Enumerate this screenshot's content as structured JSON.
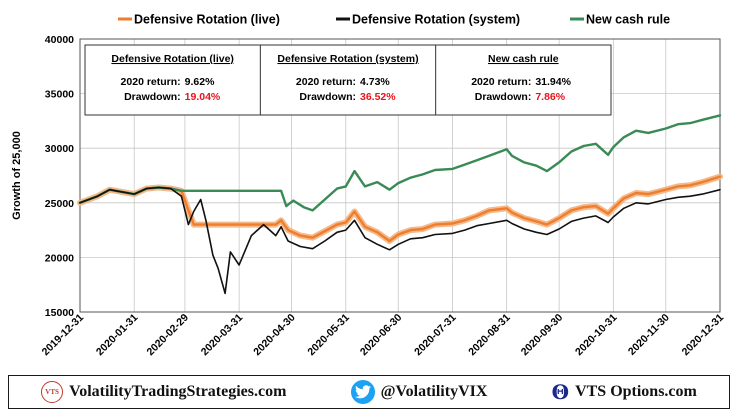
{
  "chart_data": {
    "type": "line",
    "xlabel": "",
    "ylabel": "Growth of 25,000",
    "ylim": [
      15000,
      40000
    ],
    "yticks": [
      15000,
      20000,
      25000,
      30000,
      35000,
      40000
    ],
    "ytick_labels": [
      "15000",
      "20000",
      "25000",
      "30000",
      "35000",
      "40000"
    ],
    "xticks": [
      "2019-12-31",
      "2020-01-31",
      "2020-02-29",
      "2020-03-31",
      "2020-04-30",
      "2020-05-31",
      "2020-06-30",
      "2020-07-31",
      "2020-08-31",
      "2020-09-30",
      "2020-10-31",
      "2020-11-30",
      "2020-12-31"
    ],
    "grid": true,
    "legend_position": "top",
    "series": [
      {
        "name": "Defensive Rotation  (live)",
        "color": "#ef7d2e",
        "points": [
          [
            "2019-12-31",
            25000
          ],
          [
            "2020-01-10",
            25600
          ],
          [
            "2020-01-17",
            26200
          ],
          [
            "2020-01-24",
            26000
          ],
          [
            "2020-01-31",
            25800
          ],
          [
            "2020-02-07",
            26300
          ],
          [
            "2020-02-14",
            26400
          ],
          [
            "2020-02-21",
            26300
          ],
          [
            "2020-02-27",
            26100
          ],
          [
            "2020-03-02",
            24300
          ],
          [
            "2020-03-05",
            23000
          ],
          [
            "2020-03-12",
            23000
          ],
          [
            "2020-03-19",
            23000
          ],
          [
            "2020-03-26",
            23000
          ],
          [
            "2020-03-31",
            23000
          ],
          [
            "2020-04-07",
            23000
          ],
          [
            "2020-04-14",
            23000
          ],
          [
            "2020-04-21",
            23000
          ],
          [
            "2020-04-24",
            23400
          ],
          [
            "2020-04-28",
            22500
          ],
          [
            "2020-05-05",
            22000
          ],
          [
            "2020-05-12",
            21800
          ],
          [
            "2020-05-19",
            22400
          ],
          [
            "2020-05-26",
            23000
          ],
          [
            "2020-05-31",
            23200
          ],
          [
            "2020-06-05",
            24200
          ],
          [
            "2020-06-11",
            22800
          ],
          [
            "2020-06-18",
            22300
          ],
          [
            "2020-06-25",
            21500
          ],
          [
            "2020-06-30",
            22100
          ],
          [
            "2020-07-07",
            22500
          ],
          [
            "2020-07-14",
            22600
          ],
          [
            "2020-07-21",
            23000
          ],
          [
            "2020-07-31",
            23100
          ],
          [
            "2020-08-07",
            23400
          ],
          [
            "2020-08-14",
            23800
          ],
          [
            "2020-08-21",
            24300
          ],
          [
            "2020-08-31",
            24500
          ],
          [
            "2020-09-03",
            24100
          ],
          [
            "2020-09-10",
            23600
          ],
          [
            "2020-09-17",
            23300
          ],
          [
            "2020-09-23",
            23000
          ],
          [
            "2020-09-30",
            23600
          ],
          [
            "2020-10-07",
            24300
          ],
          [
            "2020-10-14",
            24600
          ],
          [
            "2020-10-21",
            24700
          ],
          [
            "2020-10-28",
            24000
          ],
          [
            "2020-10-31",
            24500
          ],
          [
            "2020-11-06",
            25400
          ],
          [
            "2020-11-13",
            25900
          ],
          [
            "2020-11-20",
            25800
          ],
          [
            "2020-11-30",
            26200
          ],
          [
            "2020-12-07",
            26500
          ],
          [
            "2020-12-14",
            26600
          ],
          [
            "2020-12-21",
            26900
          ],
          [
            "2020-12-31",
            27400
          ]
        ]
      },
      {
        "name": "Defensive Rotation  (system)",
        "color": "#111111",
        "points": [
          [
            "2019-12-31",
            25000
          ],
          [
            "2020-01-10",
            25600
          ],
          [
            "2020-01-17",
            26200
          ],
          [
            "2020-01-24",
            26000
          ],
          [
            "2020-01-31",
            25800
          ],
          [
            "2020-02-07",
            26300
          ],
          [
            "2020-02-14",
            26400
          ],
          [
            "2020-02-21",
            26300
          ],
          [
            "2020-02-27",
            25600
          ],
          [
            "2020-03-02",
            23000
          ],
          [
            "2020-03-05",
            24200
          ],
          [
            "2020-03-09",
            25300
          ],
          [
            "2020-03-12",
            23400
          ],
          [
            "2020-03-16",
            20200
          ],
          [
            "2020-03-19",
            19000
          ],
          [
            "2020-03-23",
            16700
          ],
          [
            "2020-03-26",
            20500
          ],
          [
            "2020-03-31",
            19300
          ],
          [
            "2020-04-07",
            22000
          ],
          [
            "2020-04-14",
            23000
          ],
          [
            "2020-04-21",
            22000
          ],
          [
            "2020-04-24",
            22800
          ],
          [
            "2020-04-28",
            21500
          ],
          [
            "2020-05-05",
            21000
          ],
          [
            "2020-05-12",
            20800
          ],
          [
            "2020-05-19",
            21500
          ],
          [
            "2020-05-26",
            22300
          ],
          [
            "2020-05-31",
            22500
          ],
          [
            "2020-06-05",
            23400
          ],
          [
            "2020-06-11",
            21800
          ],
          [
            "2020-06-18",
            21200
          ],
          [
            "2020-06-25",
            20700
          ],
          [
            "2020-06-30",
            21200
          ],
          [
            "2020-07-07",
            21700
          ],
          [
            "2020-07-14",
            21800
          ],
          [
            "2020-07-21",
            22100
          ],
          [
            "2020-07-31",
            22200
          ],
          [
            "2020-08-07",
            22500
          ],
          [
            "2020-08-14",
            22900
          ],
          [
            "2020-08-21",
            23100
          ],
          [
            "2020-08-31",
            23400
          ],
          [
            "2020-09-03",
            23100
          ],
          [
            "2020-09-10",
            22600
          ],
          [
            "2020-09-17",
            22300
          ],
          [
            "2020-09-23",
            22100
          ],
          [
            "2020-09-30",
            22600
          ],
          [
            "2020-10-07",
            23300
          ],
          [
            "2020-10-14",
            23600
          ],
          [
            "2020-10-21",
            23800
          ],
          [
            "2020-10-28",
            23200
          ],
          [
            "2020-10-31",
            23700
          ],
          [
            "2020-11-06",
            24500
          ],
          [
            "2020-11-13",
            25000
          ],
          [
            "2020-11-20",
            24900
          ],
          [
            "2020-11-30",
            25300
          ],
          [
            "2020-12-07",
            25500
          ],
          [
            "2020-12-14",
            25600
          ],
          [
            "2020-12-21",
            25800
          ],
          [
            "2020-12-31",
            26200
          ]
        ]
      },
      {
        "name": "New cash rule",
        "color": "#3a8a56",
        "points": [
          [
            "2019-12-31",
            25000
          ],
          [
            "2020-01-10",
            25600
          ],
          [
            "2020-01-17",
            26200
          ],
          [
            "2020-01-24",
            26000
          ],
          [
            "2020-01-31",
            25800
          ],
          [
            "2020-02-07",
            26300
          ],
          [
            "2020-02-14",
            26400
          ],
          [
            "2020-02-21",
            26300
          ],
          [
            "2020-02-27",
            26100
          ],
          [
            "2020-03-05",
            26100
          ],
          [
            "2020-03-12",
            26100
          ],
          [
            "2020-03-19",
            26100
          ],
          [
            "2020-03-26",
            26100
          ],
          [
            "2020-03-31",
            26100
          ],
          [
            "2020-04-07",
            26100
          ],
          [
            "2020-04-14",
            26100
          ],
          [
            "2020-04-21",
            26100
          ],
          [
            "2020-04-24",
            26100
          ],
          [
            "2020-04-27",
            24700
          ],
          [
            "2020-05-01",
            25200
          ],
          [
            "2020-05-07",
            24600
          ],
          [
            "2020-05-12",
            24300
          ],
          [
            "2020-05-19",
            25300
          ],
          [
            "2020-05-26",
            26300
          ],
          [
            "2020-05-31",
            26500
          ],
          [
            "2020-06-05",
            27900
          ],
          [
            "2020-06-11",
            26500
          ],
          [
            "2020-06-18",
            26900
          ],
          [
            "2020-06-25",
            26200
          ],
          [
            "2020-06-30",
            26800
          ],
          [
            "2020-07-07",
            27300
          ],
          [
            "2020-07-14",
            27600
          ],
          [
            "2020-07-21",
            28000
          ],
          [
            "2020-07-31",
            28100
          ],
          [
            "2020-08-07",
            28500
          ],
          [
            "2020-08-14",
            28900
          ],
          [
            "2020-08-21",
            29300
          ],
          [
            "2020-08-31",
            29900
          ],
          [
            "2020-09-03",
            29300
          ],
          [
            "2020-09-10",
            28700
          ],
          [
            "2020-09-17",
            28400
          ],
          [
            "2020-09-23",
            27900
          ],
          [
            "2020-09-30",
            28700
          ],
          [
            "2020-10-07",
            29700
          ],
          [
            "2020-10-14",
            30200
          ],
          [
            "2020-10-21",
            30400
          ],
          [
            "2020-10-28",
            29400
          ],
          [
            "2020-10-31",
            30100
          ],
          [
            "2020-11-06",
            31000
          ],
          [
            "2020-11-13",
            31600
          ],
          [
            "2020-11-20",
            31400
          ],
          [
            "2020-11-30",
            31800
          ],
          [
            "2020-12-07",
            32200
          ],
          [
            "2020-12-14",
            32300
          ],
          [
            "2020-12-21",
            32600
          ],
          [
            "2020-12-31",
            33000
          ]
        ]
      }
    ],
    "stat_boxes": [
      {
        "title": "Defensive Rotation  (live)",
        "return_label": "2020 return:",
        "return_value": "9.62%",
        "drawdown_label": "Drawdown:",
        "drawdown_value": "19.04%"
      },
      {
        "title": "Defensive Rotation  (system)",
        "return_label": "2020 return:",
        "return_value": "4.73%",
        "drawdown_label": "Drawdown:",
        "drawdown_value": "36.52%"
      },
      {
        "title": "New cash rule",
        "return_label": "2020 return:",
        "return_value": "31.94%",
        "drawdown_label": "Drawdown:",
        "drawdown_value": "7.86%"
      }
    ]
  },
  "colors": {
    "drawdown": "#e8141b",
    "grid": "#c8c8c8",
    "live_glow": "#f5b98a"
  },
  "footer": {
    "vts_logo_text": "VTS",
    "site_text": "VolatilityTradingStrategies.com",
    "twitter_text": "@VolatilityVIX",
    "options_icon": "Θ",
    "options_text": "VTS Options.com",
    "icons": [
      "vts-logo-icon",
      "twitter-bird-icon",
      "theta-icon"
    ]
  }
}
